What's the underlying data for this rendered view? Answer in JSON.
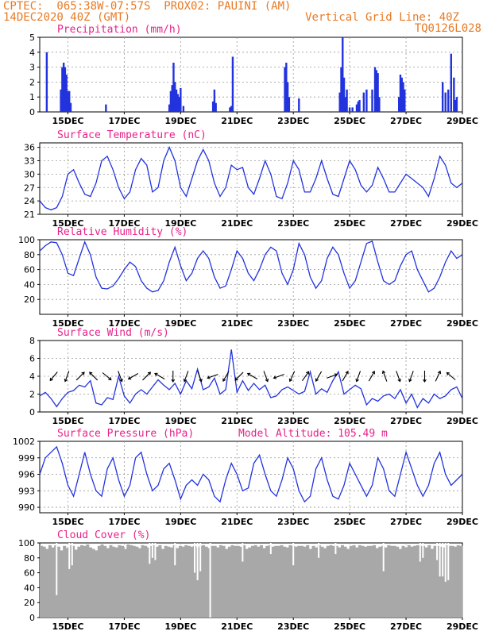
{
  "header": {
    "left1": "CPTEC:  065:38W-07:57S  PROX02: PAUINI (AM)",
    "left2": "14DEC2020 40Z (GMT)",
    "right1": "Vertical Grid Line: 40Z",
    "right2": "TQ0126L028"
  },
  "colors": {
    "header": "#e87a24",
    "title": "#e8208a",
    "line": "#2233dd",
    "cloud": "#a8a8a8"
  },
  "x_ticks": [
    "15DEC",
    "17DEC",
    "19DEC",
    "21DEC",
    "23DEC",
    "25DEC",
    "27DEC",
    "29DEC"
  ],
  "chart_data": [
    {
      "type": "bar",
      "title": "Precipitation (mm/h)",
      "ylim": [
        0,
        5
      ],
      "yticks": [
        0,
        1,
        2,
        3,
        4,
        5
      ],
      "x_range": [
        14,
        29
      ],
      "x": [
        14.25,
        14.75,
        14.8,
        14.85,
        14.9,
        14.95,
        15.0,
        15.05,
        15.1,
        16.35,
        18.6,
        18.65,
        18.7,
        18.75,
        18.8,
        18.85,
        18.9,
        18.95,
        19.0,
        19.1,
        20.15,
        20.2,
        20.25,
        20.75,
        20.8,
        20.85,
        22.7,
        22.75,
        22.8,
        22.85,
        23.2,
        24.65,
        24.7,
        24.75,
        24.8,
        24.85,
        24.9,
        25.0,
        25.1,
        25.25,
        25.3,
        25.35,
        25.5,
        25.6,
        25.8,
        25.9,
        25.95,
        26.0,
        26.05,
        26.75,
        26.8,
        26.85,
        26.9,
        26.95,
        28.3,
        28.4,
        28.5,
        28.6,
        28.7,
        28.75,
        28.8
      ],
      "values": [
        4.0,
        1.5,
        3.0,
        3.3,
        3.0,
        2.5,
        1.4,
        1.4,
        0.6,
        0.5,
        0.5,
        1.4,
        1.8,
        3.3,
        2.0,
        1.5,
        1.2,
        1.0,
        1.6,
        0.4,
        0.7,
        1.5,
        0.6,
        0.3,
        0.4,
        3.7,
        3.0,
        3.3,
        2.0,
        1.0,
        0.9,
        1.3,
        3.0,
        5.0,
        2.3,
        1.0,
        1.5,
        0.3,
        0.3,
        0.5,
        0.7,
        0.8,
        1.3,
        1.5,
        1.5,
        3.0,
        2.8,
        2.6,
        1.0,
        1.0,
        2.5,
        2.3,
        2.0,
        1.5,
        2.0,
        1.3,
        1.5,
        3.9,
        2.3,
        0.8,
        1.0
      ],
      "colors": [
        "#2233dd"
      ]
    },
    {
      "type": "line",
      "title": "Surface Temperature (nC)",
      "ylim": [
        21,
        37
      ],
      "yticks": [
        21,
        24,
        27,
        30,
        33,
        36
      ],
      "x": [
        14,
        14.2,
        14.4,
        14.6,
        14.8,
        15.0,
        15.2,
        15.4,
        15.6,
        15.8,
        16.0,
        16.2,
        16.4,
        16.6,
        16.8,
        17.0,
        17.2,
        17.4,
        17.6,
        17.8,
        18.0,
        18.2,
        18.4,
        18.6,
        18.8,
        19.0,
        19.2,
        19.4,
        19.6,
        19.8,
        20.0,
        20.2,
        20.4,
        20.6,
        20.8,
        21.0,
        21.2,
        21.4,
        21.6,
        21.8,
        22.0,
        22.2,
        22.4,
        22.6,
        22.8,
        23.0,
        23.2,
        23.4,
        23.6,
        23.8,
        24.0,
        24.2,
        24.4,
        24.6,
        24.8,
        25.0,
        25.2,
        25.4,
        25.6,
        25.8,
        26.0,
        26.2,
        26.4,
        26.6,
        26.8,
        27.0,
        27.2,
        27.4,
        27.6,
        27.8,
        28.0,
        28.2,
        28.4,
        28.6,
        28.8,
        29.0
      ],
      "y": [
        24,
        22.5,
        22,
        22.5,
        25,
        30,
        31,
        28,
        25.5,
        25,
        28,
        33,
        34,
        31,
        27,
        24.5,
        26,
        31,
        33.5,
        32,
        26,
        27,
        33,
        36,
        33,
        27,
        25,
        29,
        33,
        35.5,
        33,
        28,
        25,
        27,
        32,
        31,
        31.5,
        27,
        25.5,
        29,
        33,
        30,
        25,
        24.5,
        28,
        33,
        31,
        26,
        26,
        29,
        33,
        29,
        25.5,
        25,
        29,
        33,
        31,
        27.5,
        26,
        27.5,
        31.5,
        29,
        26,
        26,
        28,
        30,
        29,
        28,
        27,
        25,
        29,
        34,
        32,
        28,
        27,
        28
      ],
      "colors": [
        "#2233dd"
      ]
    },
    {
      "type": "line",
      "title": "Relative Humidity (%)",
      "ylim": [
        0,
        100
      ],
      "yticks": [
        20,
        40,
        60,
        80,
        100
      ],
      "x": [
        14,
        14.2,
        14.4,
        14.6,
        14.8,
        15.0,
        15.2,
        15.4,
        15.6,
        15.8,
        16.0,
        16.2,
        16.4,
        16.6,
        16.8,
        17.0,
        17.2,
        17.4,
        17.6,
        17.8,
        18.0,
        18.2,
        18.4,
        18.6,
        18.8,
        19.0,
        19.2,
        19.4,
        19.6,
        19.8,
        20.0,
        20.2,
        20.4,
        20.6,
        20.8,
        21.0,
        21.2,
        21.4,
        21.6,
        21.8,
        22.0,
        22.2,
        22.4,
        22.6,
        22.8,
        23.0,
        23.2,
        23.4,
        23.6,
        23.8,
        24.0,
        24.2,
        24.4,
        24.6,
        24.8,
        25.0,
        25.2,
        25.4,
        25.6,
        25.8,
        26.0,
        26.2,
        26.4,
        26.6,
        26.8,
        27.0,
        27.2,
        27.4,
        27.6,
        27.8,
        28.0,
        28.2,
        28.4,
        28.6,
        28.8,
        29.0
      ],
      "y": [
        85,
        92,
        97,
        96,
        80,
        55,
        52,
        75,
        97,
        80,
        50,
        35,
        34,
        38,
        48,
        60,
        70,
        64,
        45,
        35,
        30,
        32,
        45,
        70,
        90,
        65,
        45,
        55,
        75,
        85,
        75,
        50,
        35,
        38,
        60,
        85,
        75,
        55,
        45,
        60,
        80,
        90,
        85,
        55,
        40,
        60,
        95,
        80,
        50,
        35,
        45,
        75,
        90,
        80,
        55,
        35,
        45,
        70,
        95,
        98,
        70,
        45,
        40,
        45,
        65,
        80,
        85,
        60,
        45,
        30,
        35,
        50,
        70,
        85,
        75,
        80
      ],
      "colors": [
        "#2233dd"
      ]
    },
    {
      "type": "line",
      "title": "Surface Wind (m/s)",
      "ylim": [
        0,
        8
      ],
      "yticks": [
        0,
        2,
        4,
        6,
        8
      ],
      "x": [
        14,
        14.2,
        14.4,
        14.6,
        14.8,
        15.0,
        15.2,
        15.4,
        15.6,
        15.8,
        16.0,
        16.2,
        16.4,
        16.6,
        16.8,
        17.0,
        17.2,
        17.4,
        17.6,
        17.8,
        18.0,
        18.2,
        18.4,
        18.6,
        18.8,
        19.0,
        19.2,
        19.4,
        19.6,
        19.8,
        20.0,
        20.2,
        20.4,
        20.6,
        20.8,
        21.0,
        21.2,
        21.4,
        21.6,
        21.8,
        22.0,
        22.2,
        22.4,
        22.6,
        22.8,
        23.0,
        23.2,
        23.4,
        23.6,
        23.8,
        24.0,
        24.2,
        24.4,
        24.6,
        24.8,
        25.0,
        25.2,
        25.4,
        25.6,
        25.8,
        26.0,
        26.2,
        26.4,
        26.6,
        26.8,
        27.0,
        27.2,
        27.4,
        27.6,
        27.8,
        28.0,
        28.2,
        28.4,
        28.6,
        28.8,
        29.0
      ],
      "y": [
        1.8,
        2.2,
        1.5,
        0.6,
        1.5,
        2.2,
        2.4,
        3.0,
        2.8,
        3.5,
        1.0,
        0.8,
        1.6,
        1.4,
        4.0,
        1.8,
        1.0,
        2.0,
        2.5,
        2.0,
        2.8,
        3.6,
        3.0,
        2.5,
        3.2,
        2.0,
        3.5,
        2.6,
        4.8,
        2.5,
        2.8,
        3.8,
        2.0,
        2.5,
        7.0,
        2.2,
        3.5,
        2.4,
        3.2,
        2.5,
        3.0,
        1.6,
        1.8,
        2.5,
        2.8,
        2.4,
        2.0,
        2.3,
        4.5,
        2.0,
        2.6,
        2.2,
        3.5,
        4.5,
        2.0,
        2.5,
        3.0,
        2.6,
        0.8,
        1.5,
        1.2,
        1.8,
        2.0,
        1.5,
        2.5,
        1.0,
        2.0,
        0.5,
        1.5,
        1.0,
        2.0,
        1.5,
        1.8,
        2.5,
        2.8,
        1.5
      ],
      "wind_arrow_dirs_deg": [
        220,
        200,
        45,
        315,
        130,
        160,
        240,
        45,
        300,
        180,
        200,
        160,
        250,
        210,
        225,
        300,
        160,
        250,
        205,
        35,
        210,
        70,
        30,
        200,
        30,
        340,
        160,
        200,
        180,
        25,
        310
      ],
      "colors": [
        "#2233dd"
      ]
    },
    {
      "type": "line",
      "title": "Surface Pressure (hPa)",
      "annotation": "Model Altitude: 105.49  m",
      "ylim": [
        989,
        1002
      ],
      "yticks": [
        990,
        993,
        996,
        999,
        1002
      ],
      "x": [
        14,
        14.2,
        14.4,
        14.6,
        14.8,
        15.0,
        15.2,
        15.4,
        15.6,
        15.8,
        16.0,
        16.2,
        16.4,
        16.6,
        16.8,
        17.0,
        17.2,
        17.4,
        17.6,
        17.8,
        18.0,
        18.2,
        18.4,
        18.6,
        18.8,
        19.0,
        19.2,
        19.4,
        19.6,
        19.8,
        20.0,
        20.2,
        20.4,
        20.6,
        20.8,
        21.0,
        21.2,
        21.4,
        21.6,
        21.8,
        22.0,
        22.2,
        22.4,
        22.6,
        22.8,
        23.0,
        23.2,
        23.4,
        23.6,
        23.8,
        24.0,
        24.2,
        24.4,
        24.6,
        24.8,
        25.0,
        25.2,
        25.4,
        25.6,
        25.8,
        26.0,
        26.2,
        26.4,
        26.6,
        26.8,
        27.0,
        27.2,
        27.4,
        27.6,
        27.8,
        28.0,
        28.2,
        28.4,
        28.6,
        28.8,
        29.0
      ],
      "y": [
        996,
        999,
        1000,
        1001,
        998,
        994,
        992,
        996,
        1000,
        996,
        993,
        992,
        997,
        999,
        995,
        992,
        994,
        999,
        1000,
        996,
        993,
        994,
        997,
        998,
        995,
        991.5,
        994,
        995,
        994,
        996,
        995,
        992,
        991,
        995,
        998,
        996,
        993,
        993.5,
        998,
        999.5,
        996,
        993,
        992,
        995,
        999,
        997,
        993,
        991,
        992,
        997,
        999,
        995,
        992,
        991.5,
        994,
        998,
        996,
        994,
        992,
        994,
        999,
        997,
        993,
        992,
        996,
        1000,
        997,
        994,
        992,
        994,
        998,
        1000,
        996,
        994,
        995,
        996
      ],
      "colors": [
        "#2233dd"
      ]
    },
    {
      "type": "bar",
      "title": "Cloud Cover (%)",
      "ylim": [
        0,
        100
      ],
      "yticks": [
        0,
        20,
        40,
        60,
        80,
        100
      ],
      "x_range": [
        14,
        29
      ],
      "values": [
        96,
        95,
        92,
        97,
        94,
        97,
        95,
        90,
        96,
        93,
        97,
        96,
        91,
        95,
        97,
        96,
        98,
        94,
        92,
        90,
        96,
        98,
        96,
        93,
        97,
        95,
        94,
        97,
        96,
        92,
        98,
        97,
        96,
        95,
        93,
        97,
        96,
        94,
        96,
        97,
        95,
        97,
        92,
        96,
        95,
        94,
        97,
        93,
        96,
        95,
        97,
        96,
        95,
        96,
        94,
        96,
        97,
        95,
        93,
        96,
        96,
        94,
        97,
        96,
        92,
        95,
        97,
        96,
        96,
        95,
        97,
        92,
        94,
        96,
        97,
        95,
        97,
        93,
        96,
        97,
        95,
        96,
        96,
        97,
        95,
        94,
        97,
        96,
        95,
        96,
        96,
        95,
        97,
        92,
        96,
        94,
        97,
        95,
        93,
        96,
        97,
        96,
        96,
        94,
        97,
        95,
        92,
        96,
        97,
        94,
        97,
        96,
        95,
        96,
        96,
        97,
        93,
        95,
        96,
        94,
        97,
        96,
        96,
        95,
        92,
        96,
        94,
        97,
        95,
        96,
        97,
        96,
        96,
        94,
        97,
        92,
        96,
        96,
        95,
        94,
        97,
        96,
        96,
        95,
        97,
        96
      ],
      "dips": [
        {
          "x": 14.6,
          "v": 30
        },
        {
          "x": 15.05,
          "v": 65
        },
        {
          "x": 15.15,
          "v": 70
        },
        {
          "x": 17.9,
          "v": 72
        },
        {
          "x": 18.0,
          "v": 80
        },
        {
          "x": 18.1,
          "v": 77
        },
        {
          "x": 18.8,
          "v": 70
        },
        {
          "x": 19.5,
          "v": 60
        },
        {
          "x": 19.6,
          "v": 50
        },
        {
          "x": 19.7,
          "v": 62
        },
        {
          "x": 20.05,
          "v": 0
        },
        {
          "x": 21.2,
          "v": 75
        },
        {
          "x": 22.2,
          "v": 85
        },
        {
          "x": 23.0,
          "v": 70
        },
        {
          "x": 23.9,
          "v": 80
        },
        {
          "x": 24.5,
          "v": 85
        },
        {
          "x": 26.2,
          "v": 62
        },
        {
          "x": 27.5,
          "v": 75
        },
        {
          "x": 27.6,
          "v": 80
        },
        {
          "x": 28.1,
          "v": 77
        },
        {
          "x": 28.2,
          "v": 55
        },
        {
          "x": 28.3,
          "v": 55
        },
        {
          "x": 28.4,
          "v": 48
        },
        {
          "x": 28.5,
          "v": 50
        }
      ],
      "colors": [
        "#a8a8a8"
      ]
    }
  ]
}
